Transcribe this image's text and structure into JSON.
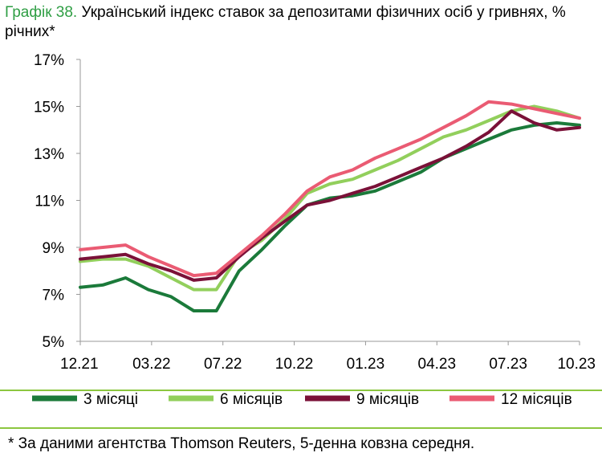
{
  "title": {
    "number": "Графік 38.",
    "text": "Український індекс ставок за депозитами фізичних осіб у гривнях, % річних*"
  },
  "footnote": "* За даними агентства Thomson Reuters, 5-денна ковзна середня.",
  "colors": {
    "s3": "#1b7a3a",
    "s6": "#92cf5c",
    "s9": "#7a1138",
    "s12": "#ea5b73",
    "rule": "#8cc63f",
    "title_number": "#2f9e44"
  },
  "chart_data": {
    "type": "line",
    "xlabel": "",
    "ylabel": "",
    "ylim": [
      5,
      17
    ],
    "y_ticks": [
      "5%",
      "7%",
      "9%",
      "11%",
      "13%",
      "15%",
      "17%"
    ],
    "x_ticks": [
      "12.21",
      "03.22",
      "07.22",
      "10.22",
      "01.23",
      "04.23",
      "07.23",
      "10.23"
    ],
    "grid": false,
    "legend": "bottom",
    "series": [
      {
        "name": "3 місяці",
        "color_key": "s3",
        "x": [
          "12.21",
          "01.22",
          "02.22",
          "03.22",
          "04.22",
          "05.22",
          "06.22",
          "07.22",
          "08.22",
          "09.22",
          "10.22",
          "11.22",
          "12.22",
          "01.23",
          "02.23",
          "03.23",
          "04.23",
          "05.23",
          "06.23",
          "07.23",
          "08.23",
          "09.23",
          "10.23"
        ],
        "y": [
          7.3,
          7.4,
          7.7,
          7.2,
          6.9,
          6.3,
          6.3,
          8.0,
          8.9,
          9.9,
          10.8,
          11.1,
          11.2,
          11.4,
          11.8,
          12.2,
          12.8,
          13.2,
          13.6,
          14.0,
          14.2,
          14.3,
          14.2
        ]
      },
      {
        "name": "6 місяців",
        "color_key": "s6",
        "x": [
          "12.21",
          "01.22",
          "02.22",
          "03.22",
          "04.22",
          "05.22",
          "06.22",
          "07.22",
          "08.22",
          "09.22",
          "10.22",
          "11.22",
          "12.22",
          "01.23",
          "02.23",
          "03.23",
          "04.23",
          "05.23",
          "06.23",
          "07.23",
          "08.23",
          "09.23",
          "10.23"
        ],
        "y": [
          8.4,
          8.5,
          8.5,
          8.2,
          7.7,
          7.2,
          7.2,
          8.7,
          9.3,
          10.2,
          11.3,
          11.7,
          11.9,
          12.3,
          12.7,
          13.2,
          13.7,
          14.0,
          14.4,
          14.8,
          15.0,
          14.8,
          14.5
        ]
      },
      {
        "name": "9 місяців",
        "color_key": "s9",
        "x": [
          "12.21",
          "01.22",
          "02.22",
          "03.22",
          "04.22",
          "05.22",
          "06.22",
          "07.22",
          "08.22",
          "09.22",
          "10.22",
          "11.22",
          "12.22",
          "01.23",
          "02.23",
          "03.23",
          "04.23",
          "05.23",
          "06.23",
          "07.23",
          "08.23",
          "09.23",
          "10.23"
        ],
        "y": [
          8.5,
          8.6,
          8.7,
          8.3,
          8.0,
          7.6,
          7.7,
          8.6,
          9.4,
          10.1,
          10.8,
          11.0,
          11.3,
          11.6,
          12.0,
          12.4,
          12.8,
          13.3,
          13.9,
          14.8,
          14.3,
          14.0,
          14.1
        ]
      },
      {
        "name": "12 місяців",
        "color_key": "s12",
        "x": [
          "12.21",
          "01.22",
          "02.22",
          "03.22",
          "04.22",
          "05.22",
          "06.22",
          "07.22",
          "08.22",
          "09.22",
          "10.22",
          "11.22",
          "12.22",
          "01.23",
          "02.23",
          "03.23",
          "04.23",
          "05.23",
          "06.23",
          "07.23",
          "08.23",
          "09.23",
          "10.23"
        ],
        "y": [
          8.9,
          9.0,
          9.1,
          8.6,
          8.2,
          7.8,
          7.9,
          8.7,
          9.5,
          10.4,
          11.4,
          12.0,
          12.3,
          12.8,
          13.2,
          13.6,
          14.1,
          14.6,
          15.2,
          15.1,
          14.9,
          14.7,
          14.5
        ]
      }
    ]
  }
}
